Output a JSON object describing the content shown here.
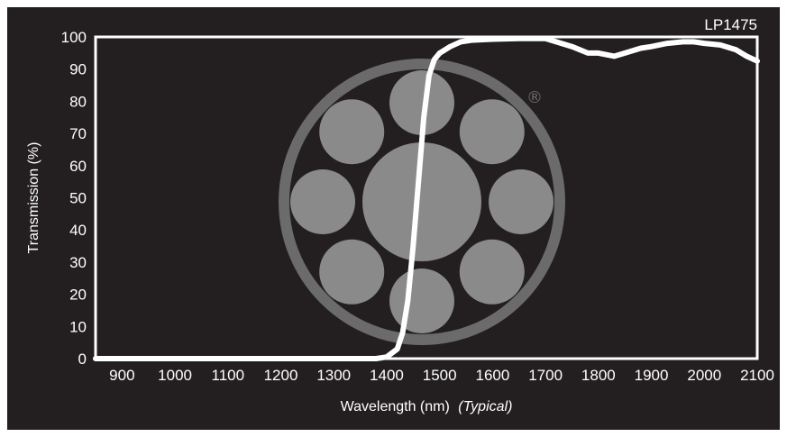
{
  "chart_data": {
    "type": "line",
    "title": "",
    "xlabel": "Wavelength (nm)",
    "xlabel_suffix": "(Typical)",
    "ylabel": "Transmission (%)",
    "xlim": [
      850,
      2100
    ],
    "ylim": [
      0,
      100
    ],
    "xticks": [
      "900",
      "1000",
      "1100",
      "1200",
      "1300",
      "1400",
      "1500",
      "1600",
      "1700",
      "1800",
      "1900",
      "2000",
      "2100"
    ],
    "yticks": [
      "0",
      "10",
      "20",
      "30",
      "40",
      "50",
      "60",
      "70",
      "80",
      "90",
      "100"
    ],
    "grid": false,
    "legend_position": "top-right",
    "series": [
      {
        "name": "LP1475",
        "x": [
          850,
          900,
          1000,
          1100,
          1200,
          1300,
          1380,
          1400,
          1420,
          1430,
          1440,
          1450,
          1460,
          1470,
          1480,
          1490,
          1500,
          1510,
          1520,
          1540,
          1560,
          1600,
          1650,
          1700,
          1750,
          1780,
          1800,
          1830,
          1850,
          1880,
          1900,
          1930,
          1960,
          1980,
          2000,
          2030,
          2060,
          2080,
          2100
        ],
        "y": [
          0,
          0,
          0,
          0,
          0,
          0,
          0,
          0.5,
          3,
          8,
          18,
          35,
          55,
          75,
          88,
          93,
          95,
          96,
          97,
          98.5,
          99,
          99.3,
          99.5,
          99.5,
          97,
          95,
          95,
          94,
          95,
          96.5,
          97,
          98,
          98.5,
          98.5,
          98,
          97.5,
          96,
          94,
          92.5
        ],
        "color": "#ffffff"
      }
    ]
  },
  "logo_colors": {
    "ring": "#6b6b6b",
    "circles": "#8a8a8a"
  }
}
